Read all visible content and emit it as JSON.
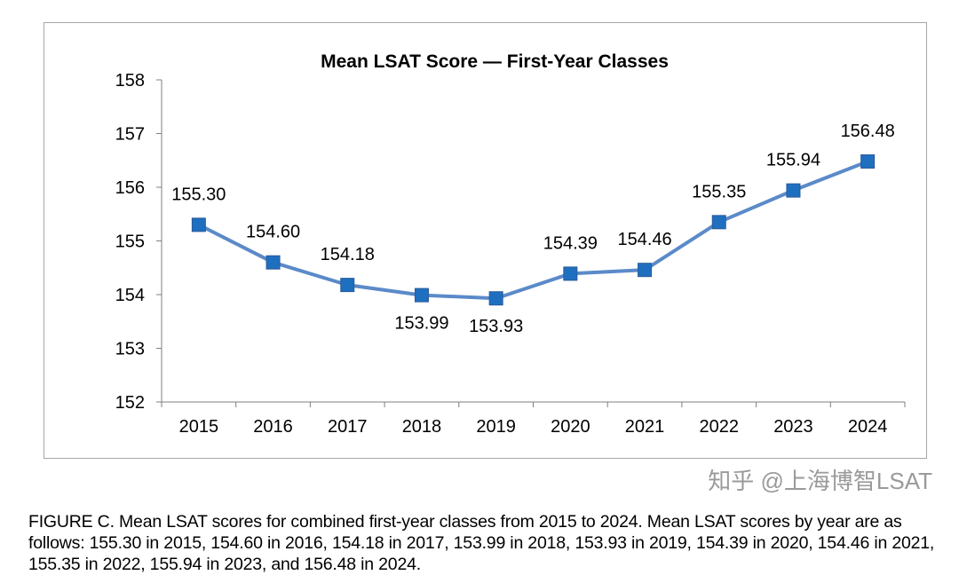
{
  "chart_data": {
    "type": "line",
    "title": "Mean LSAT Score — First-Year Classes",
    "categories": [
      "2015",
      "2016",
      "2017",
      "2018",
      "2019",
      "2020",
      "2021",
      "2022",
      "2023",
      "2024"
    ],
    "values": [
      155.3,
      154.6,
      154.18,
      153.99,
      153.93,
      154.39,
      154.46,
      155.35,
      155.94,
      156.48
    ],
    "data_labels": [
      "155.30",
      "154.60",
      "154.18",
      "153.99",
      "153.93",
      "154.39",
      "154.46",
      "155.35",
      "155.94",
      "156.48"
    ],
    "ylim": [
      152,
      158
    ],
    "yticks": [
      "152",
      "153",
      "154",
      "155",
      "156",
      "157",
      "158"
    ],
    "xlabel": "",
    "ylabel": "",
    "grid": false,
    "legend": "none",
    "line_color": "#5b8ac9",
    "marker_color": "#1f6fc0",
    "marker": "square"
  },
  "caption": "FIGURE C. Mean LSAT scores for combined first-year classes from 2015 to 2024. Mean LSAT scores by year are as follows: 155.30 in 2015, 154.60 in 2016, 154.18 in 2017, 153.99 in 2018, 153.93 in 2019, 154.39 in 2020, 154.46 in 2021, 155.35 in 2022, 155.94 in 2023, and 156.48 in 2024.",
  "watermark": "知乎 @上海博智LSAT"
}
